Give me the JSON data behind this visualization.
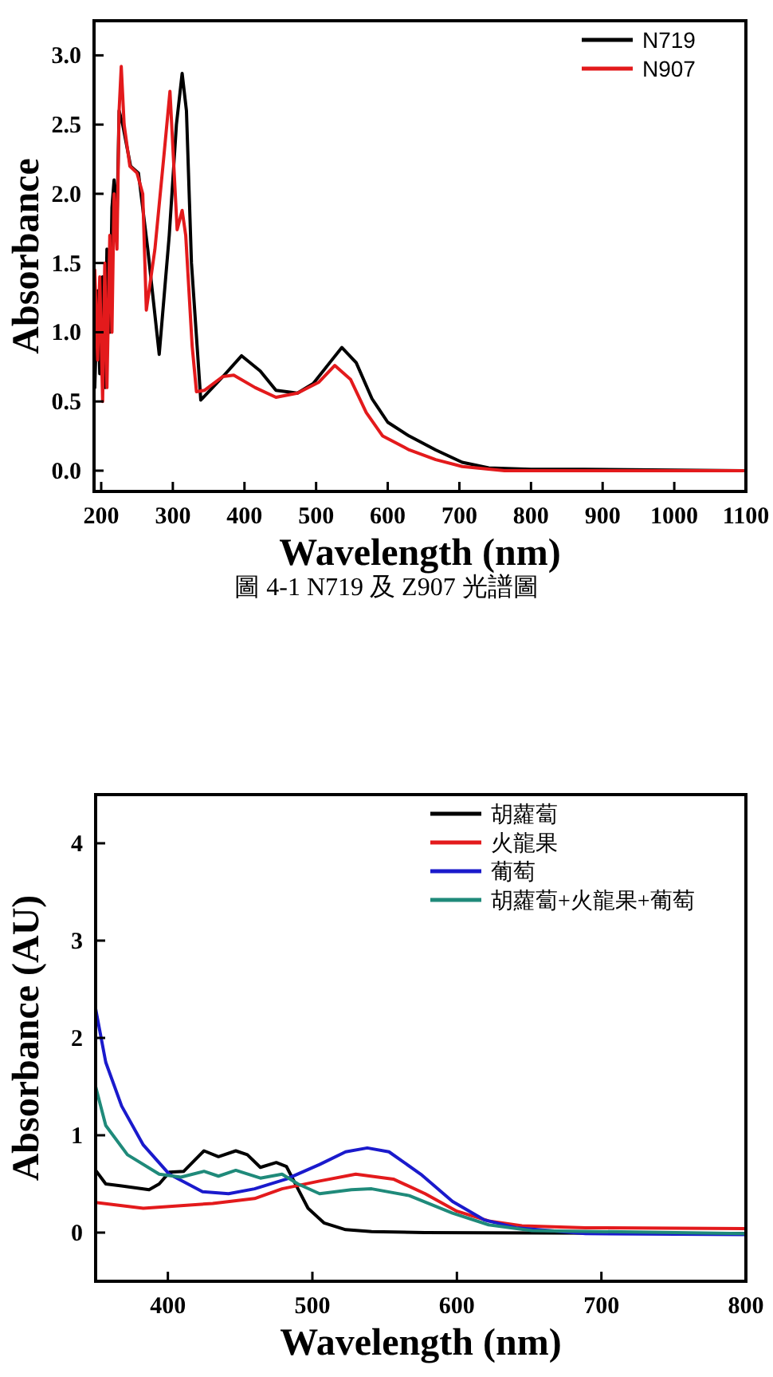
{
  "chart_data": [
    {
      "type": "line",
      "xlabel": "Wavelength (nm)",
      "ylabel": "Absorbance",
      "xlim": [
        190,
        1100
      ],
      "ylim": [
        -0.15,
        3.25
      ],
      "xticks": [
        200,
        300,
        400,
        500,
        600,
        700,
        800,
        900,
        1000,
        1100
      ],
      "yticks": [
        {
          "value": 0,
          "label": "0.0"
        },
        {
          "value": 0.5,
          "label": "0.5"
        },
        {
          "value": 1,
          "label": "1.0"
        },
        {
          "value": 1.5,
          "label": "1.5"
        },
        {
          "value": 2,
          "label": "2.0"
        },
        {
          "value": 2.5,
          "label": "2.5"
        },
        {
          "value": 3,
          "label": "3.0"
        }
      ],
      "legend": "top right",
      "annotations": [
        "圖 4-1 N719 及 Z907 光譜圖"
      ],
      "series": [
        {
          "name": "N719",
          "color": "#000000",
          "x": [
            191,
            195,
            198,
            202,
            205,
            208,
            212,
            215,
            218,
            222,
            225,
            230,
            241,
            252,
            265,
            281,
            295,
            305,
            313,
            319,
            326,
            339,
            370,
            396,
            422,
            444,
            474,
            496,
            519,
            536,
            556,
            578,
            600,
            630,
            667,
            704,
            741,
            800,
            874,
            1096
          ],
          "values": [
            0.6,
            1.3,
            0.7,
            1.4,
            0.6,
            1.6,
            1.0,
            1.9,
            2.1,
            1.8,
            2.6,
            2.5,
            2.2,
            2.15,
            1.6,
            0.84,
            1.7,
            2.5,
            2.87,
            2.6,
            1.5,
            0.51,
            0.68,
            0.83,
            0.72,
            0.58,
            0.56,
            0.63,
            0.78,
            0.89,
            0.78,
            0.52,
            0.35,
            0.25,
            0.15,
            0.06,
            0.02,
            0.01,
            0.01,
            0
          ]
        },
        {
          "name": "N907",
          "color": "#e31a1c",
          "x": [
            191,
            195,
            198,
            202,
            205,
            208,
            212,
            215,
            218,
            222,
            225,
            228,
            232,
            240,
            250,
            258,
            263,
            275,
            288,
            296,
            306,
            313,
            318,
            327,
            333,
            344,
            370,
            385,
            415,
            444,
            474,
            504,
            526,
            548,
            570,
            593,
            630,
            667,
            704,
            763,
            1096
          ],
          "values": [
            1.45,
            0.8,
            1.4,
            0.5,
            1.5,
            0.6,
            1.7,
            1.0,
            2.0,
            1.6,
            2.6,
            2.92,
            2.5,
            2.2,
            2.15,
            2.0,
            1.16,
            1.6,
            2.3,
            2.74,
            1.74,
            1.88,
            1.7,
            0.9,
            0.57,
            0.58,
            0.68,
            0.69,
            0.6,
            0.53,
            0.56,
            0.64,
            0.76,
            0.66,
            0.42,
            0.25,
            0.15,
            0.08,
            0.03,
            0,
            0
          ]
        }
      ]
    },
    {
      "type": "line",
      "xlabel": "Wavelength (nm)",
      "ylabel": "Absorbance (AU)",
      "xlim": [
        350,
        800
      ],
      "ylim": [
        -0.5,
        4.5
      ],
      "xticks": [
        400,
        500,
        600,
        700,
        800
      ],
      "yticks": [
        0,
        1,
        2,
        3,
        4
      ],
      "legend": "top right",
      "series": [
        {
          "name": "胡蘿蔔",
          "color": "#000000",
          "x": [
            350,
            357,
            368,
            387,
            394,
            401,
            411,
            425,
            435,
            447,
            455,
            464,
            475,
            482,
            490,
            497,
            508,
            523,
            541,
            578,
            799
          ],
          "values": [
            0.64,
            0.5,
            0.48,
            0.44,
            0.5,
            0.62,
            0.63,
            0.84,
            0.78,
            0.84,
            0.8,
            0.67,
            0.72,
            0.68,
            0.45,
            0.25,
            0.1,
            0.03,
            0.01,
            0,
            -0.01
          ]
        },
        {
          "name": "火龍果",
          "color": "#e31a1c",
          "x": [
            350,
            383,
            431,
            460,
            479,
            505,
            530,
            556,
            578,
            600,
            622,
            645,
            689,
            799
          ],
          "values": [
            0.31,
            0.25,
            0.3,
            0.35,
            0.45,
            0.53,
            0.6,
            0.55,
            0.4,
            0.22,
            0.12,
            0.07,
            0.05,
            0.04
          ]
        },
        {
          "name": "葡萄",
          "color": "#1a1acc",
          "x": [
            350,
            357,
            368,
            383,
            401,
            424,
            442,
            460,
            482,
            505,
            523,
            538,
            553,
            575,
            597,
            619,
            641,
            689,
            799
          ],
          "values": [
            2.3,
            1.75,
            1.3,
            0.9,
            0.6,
            0.42,
            0.4,
            0.45,
            0.55,
            0.7,
            0.83,
            0.87,
            0.83,
            0.6,
            0.32,
            0.13,
            0.05,
            -0.01,
            -0.02
          ]
        },
        {
          "name": "胡蘿蔔+火龍果+葡萄",
          "color": "#1f8a7a",
          "x": [
            350,
            357,
            372,
            394,
            409,
            425,
            435,
            447,
            464,
            479,
            490,
            505,
            527,
            541,
            567,
            597,
            622,
            652,
            799
          ],
          "values": [
            1.5,
            1.1,
            0.8,
            0.6,
            0.57,
            0.63,
            0.58,
            0.64,
            0.56,
            0.6,
            0.5,
            0.4,
            0.44,
            0.45,
            0.38,
            0.2,
            0.08,
            0.02,
            -0.01
          ]
        }
      ]
    }
  ]
}
